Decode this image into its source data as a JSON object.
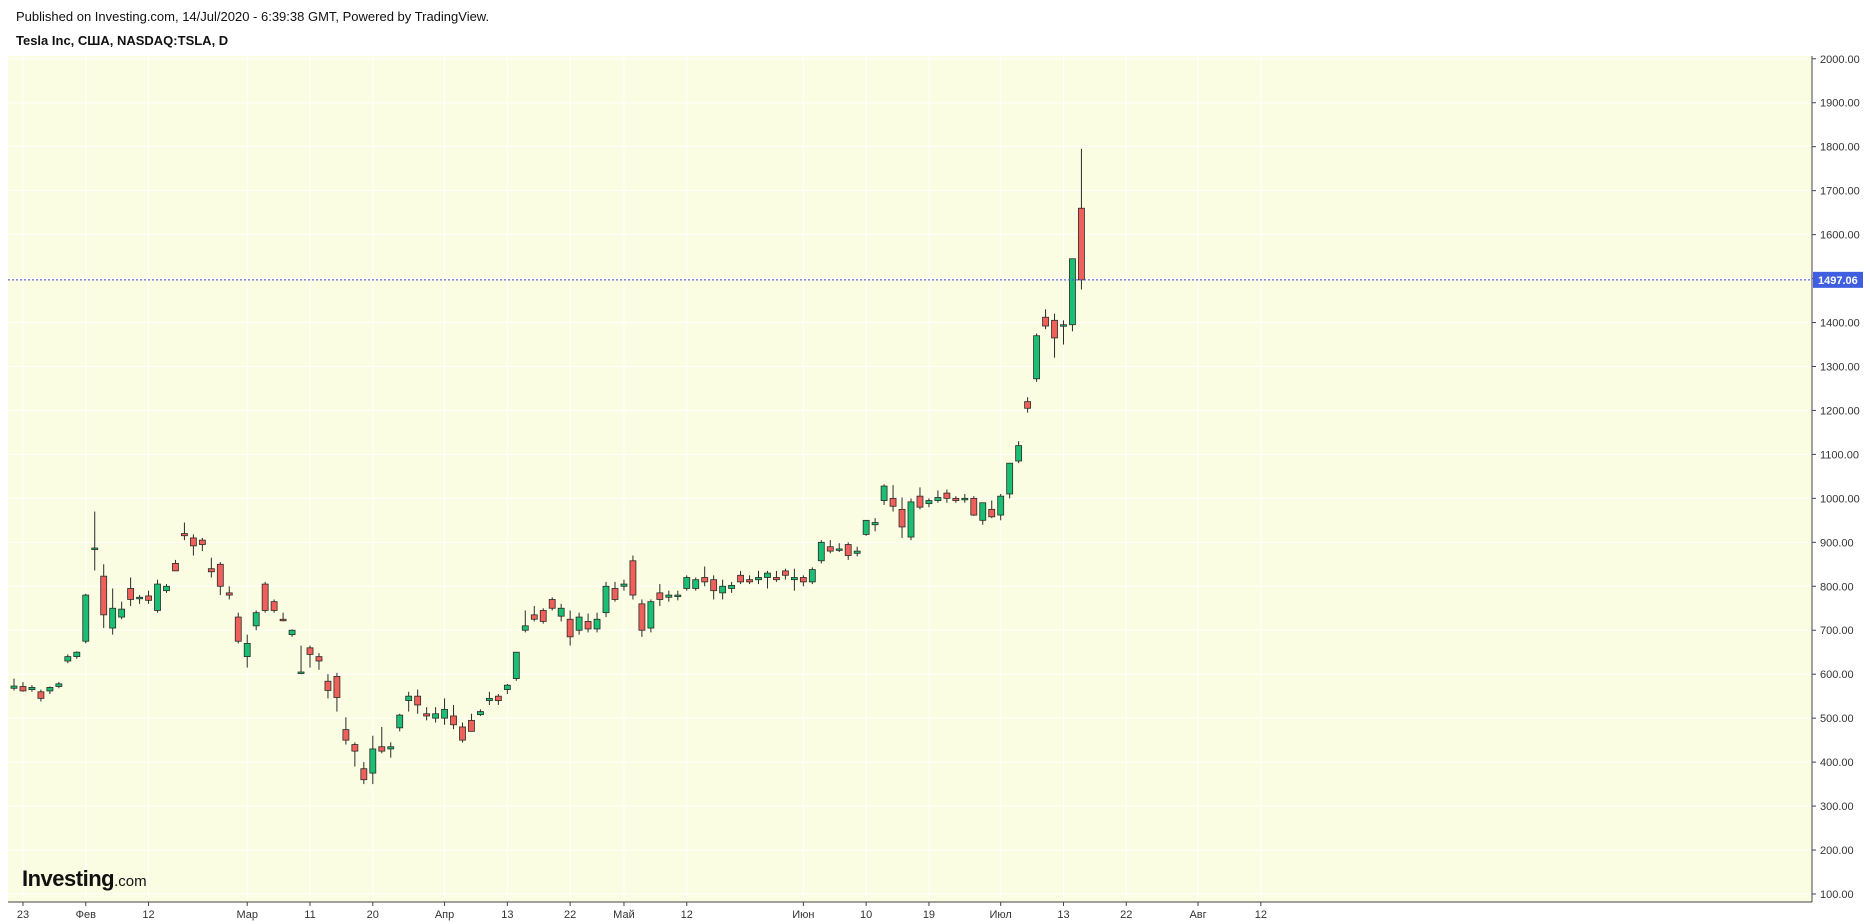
{
  "header": {
    "published": "Published on Investing.com, 14/Jul/2020 - 6:39:38 GMT, Powered by TradingView.",
    "symbol": "Tesla Inc, США, NASDAQ:TSLA, D"
  },
  "logo": {
    "main": "Investing",
    "suffix": ".com"
  },
  "colors": {
    "background": "#FAFDE1",
    "up": "#1BBF73",
    "down": "#F0605B",
    "outline": "#2b2b2b",
    "grid": "#FFFFFF",
    "price_line": "#3F4CE0",
    "price_tag": "#3F5FE0"
  },
  "chart_data": {
    "type": "candlestick",
    "title": "Tesla Inc, США, NASDAQ:TSLA, D",
    "ylim": [
      75,
      2030
    ],
    "y_ticks": [
      "2000.00",
      "1900.00",
      "1800.00",
      "1700.00",
      "1600.00",
      "1500.00",
      "1400.00",
      "1300.00",
      "1200.00",
      "1100.00",
      "1000.00",
      "900.00",
      "800.00",
      "700.00",
      "600.00",
      "500.00",
      "400.00",
      "300.00",
      "200.00",
      "100.00"
    ],
    "x_ticks": [
      {
        "label": "23",
        "i": 1
      },
      {
        "label": "Фев",
        "i": 8
      },
      {
        "label": "12",
        "i": 15
      },
      {
        "label": "Мар",
        "i": 26
      },
      {
        "label": "11",
        "i": 33
      },
      {
        "label": "20",
        "i": 40
      },
      {
        "label": "Апр",
        "i": 48
      },
      {
        "label": "13",
        "i": 55
      },
      {
        "label": "22",
        "i": 62
      },
      {
        "label": "Май",
        "i": 68
      },
      {
        "label": "12",
        "i": 75
      },
      {
        "label": "Июн",
        "i": 88
      },
      {
        "label": "10",
        "i": 95
      },
      {
        "label": "19",
        "i": 102
      },
      {
        "label": "Июл",
        "i": 110
      },
      {
        "label": "13",
        "i": 117
      },
      {
        "label": "22",
        "i": 124
      },
      {
        "label": "Авг",
        "i": 132
      },
      {
        "label": "12",
        "i": 139
      }
    ],
    "last_price": "1497.06",
    "candles": [
      [
        568,
        590,
        563,
        573
      ],
      [
        572,
        582,
        560,
        562
      ],
      [
        565,
        575,
        560,
        570
      ],
      [
        560,
        565,
        538,
        545
      ],
      [
        562,
        572,
        555,
        570
      ],
      [
        572,
        582,
        568,
        578
      ],
      [
        630,
        645,
        625,
        640
      ],
      [
        640,
        652,
        635,
        650
      ],
      [
        675,
        783,
        670,
        780
      ],
      [
        887,
        970,
        836,
        887
      ],
      [
        823,
        850,
        705,
        735
      ],
      [
        705,
        795,
        690,
        750
      ],
      [
        730,
        765,
        725,
        748
      ],
      [
        795,
        820,
        755,
        770
      ],
      [
        772,
        780,
        760,
        775
      ],
      [
        778,
        790,
        760,
        768
      ],
      [
        745,
        815,
        740,
        805
      ],
      [
        790,
        805,
        785,
        800
      ],
      [
        852,
        860,
        838,
        835
      ],
      [
        920,
        945,
        905,
        915
      ],
      [
        910,
        918,
        870,
        892
      ],
      [
        905,
        910,
        880,
        895
      ],
      [
        840,
        865,
        820,
        833
      ],
      [
        850,
        855,
        780,
        800
      ],
      [
        785,
        800,
        770,
        780
      ],
      [
        730,
        740,
        670,
        675
      ],
      [
        640,
        690,
        615,
        670
      ],
      [
        710,
        745,
        700,
        740
      ],
      [
        805,
        810,
        740,
        745
      ],
      [
        765,
        770,
        740,
        745
      ],
      [
        725,
        740,
        720,
        722
      ],
      [
        690,
        702,
        685,
        700
      ],
      [
        605,
        665,
        600,
        605
      ],
      [
        660,
        665,
        615,
        645
      ],
      [
        640,
        648,
        610,
        630
      ],
      [
        584,
        600,
        545,
        563
      ],
      [
        595,
        603,
        515,
        547
      ],
      [
        474,
        502,
        440,
        450
      ],
      [
        440,
        445,
        390,
        425
      ],
      [
        385,
        400,
        350,
        360
      ],
      [
        375,
        460,
        350,
        430
      ],
      [
        435,
        480,
        420,
        425
      ],
      [
        430,
        445,
        410,
        435
      ],
      [
        478,
        510,
        470,
        507
      ],
      [
        540,
        560,
        515,
        550
      ],
      [
        550,
        565,
        510,
        530
      ],
      [
        510,
        525,
        495,
        505
      ],
      [
        500,
        525,
        490,
        510
      ],
      [
        500,
        545,
        485,
        520
      ],
      [
        505,
        530,
        475,
        485
      ],
      [
        480,
        490,
        445,
        450
      ],
      [
        495,
        510,
        470,
        470
      ],
      [
        508,
        520,
        505,
        515
      ],
      [
        540,
        560,
        530,
        545
      ],
      [
        550,
        555,
        530,
        540
      ],
      [
        565,
        578,
        555,
        575
      ],
      [
        590,
        650,
        585,
        650
      ],
      [
        700,
        745,
        695,
        710
      ],
      [
        735,
        755,
        720,
        725
      ],
      [
        745,
        750,
        715,
        720
      ],
      [
        770,
        775,
        745,
        750
      ],
      [
        732,
        760,
        720,
        750
      ],
      [
        725,
        745,
        665,
        685
      ],
      [
        700,
        740,
        690,
        730
      ],
      [
        720,
        738,
        695,
        703
      ],
      [
        703,
        740,
        695,
        725
      ],
      [
        740,
        810,
        730,
        800
      ],
      [
        795,
        810,
        765,
        770
      ],
      [
        800,
        815,
        790,
        805
      ],
      [
        858,
        870,
        770,
        780
      ],
      [
        760,
        770,
        685,
        700
      ],
      [
        705,
        770,
        695,
        765
      ],
      [
        785,
        805,
        755,
        770
      ],
      [
        775,
        790,
        765,
        780
      ],
      [
        778,
        790,
        768,
        780
      ],
      [
        795,
        825,
        790,
        820
      ],
      [
        795,
        820,
        790,
        815
      ],
      [
        820,
        845,
        800,
        810
      ],
      [
        815,
        825,
        770,
        790
      ],
      [
        785,
        815,
        770,
        800
      ],
      [
        795,
        810,
        785,
        802
      ],
      [
        825,
        835,
        805,
        810
      ],
      [
        815,
        825,
        805,
        810
      ],
      [
        815,
        835,
        805,
        820
      ],
      [
        820,
        835,
        795,
        830
      ],
      [
        820,
        835,
        810,
        815
      ],
      [
        835,
        840,
        815,
        825
      ],
      [
        815,
        840,
        790,
        820
      ],
      [
        820,
        825,
        800,
        810
      ],
      [
        810,
        843,
        805,
        838
      ],
      [
        858,
        905,
        852,
        900
      ],
      [
        890,
        905,
        875,
        880
      ],
      [
        885,
        898,
        878,
        885
      ],
      [
        895,
        900,
        860,
        870
      ],
      [
        875,
        890,
        868,
        880
      ],
      [
        918,
        950,
        915,
        950
      ],
      [
        940,
        955,
        925,
        945
      ],
      [
        995,
        1032,
        985,
        1028
      ],
      [
        1000,
        1030,
        970,
        982
      ],
      [
        975,
        1002,
        910,
        935
      ],
      [
        912,
        1000,
        905,
        992
      ],
      [
        1005,
        1025,
        975,
        980
      ],
      [
        988,
        1000,
        980,
        995
      ],
      [
        995,
        1018,
        990,
        1002
      ],
      [
        1012,
        1020,
        990,
        1000
      ],
      [
        1000,
        1005,
        990,
        995
      ],
      [
        998,
        1010,
        990,
        1000
      ],
      [
        1000,
        1005,
        960,
        962
      ],
      [
        950,
        990,
        940,
        990
      ],
      [
        975,
        995,
        955,
        958
      ],
      [
        962,
        1010,
        950,
        1005
      ],
      [
        1010,
        1080,
        1000,
        1080
      ],
      [
        1085,
        1130,
        1080,
        1120
      ],
      [
        1220,
        1230,
        1195,
        1205
      ],
      [
        1272,
        1375,
        1265,
        1370
      ],
      [
        1412,
        1430,
        1385,
        1392
      ],
      [
        1405,
        1420,
        1320,
        1365
      ],
      [
        1395,
        1405,
        1350,
        1395
      ],
      [
        1395,
        1545,
        1380,
        1545
      ],
      [
        1660,
        1795,
        1475,
        1497
      ]
    ]
  }
}
